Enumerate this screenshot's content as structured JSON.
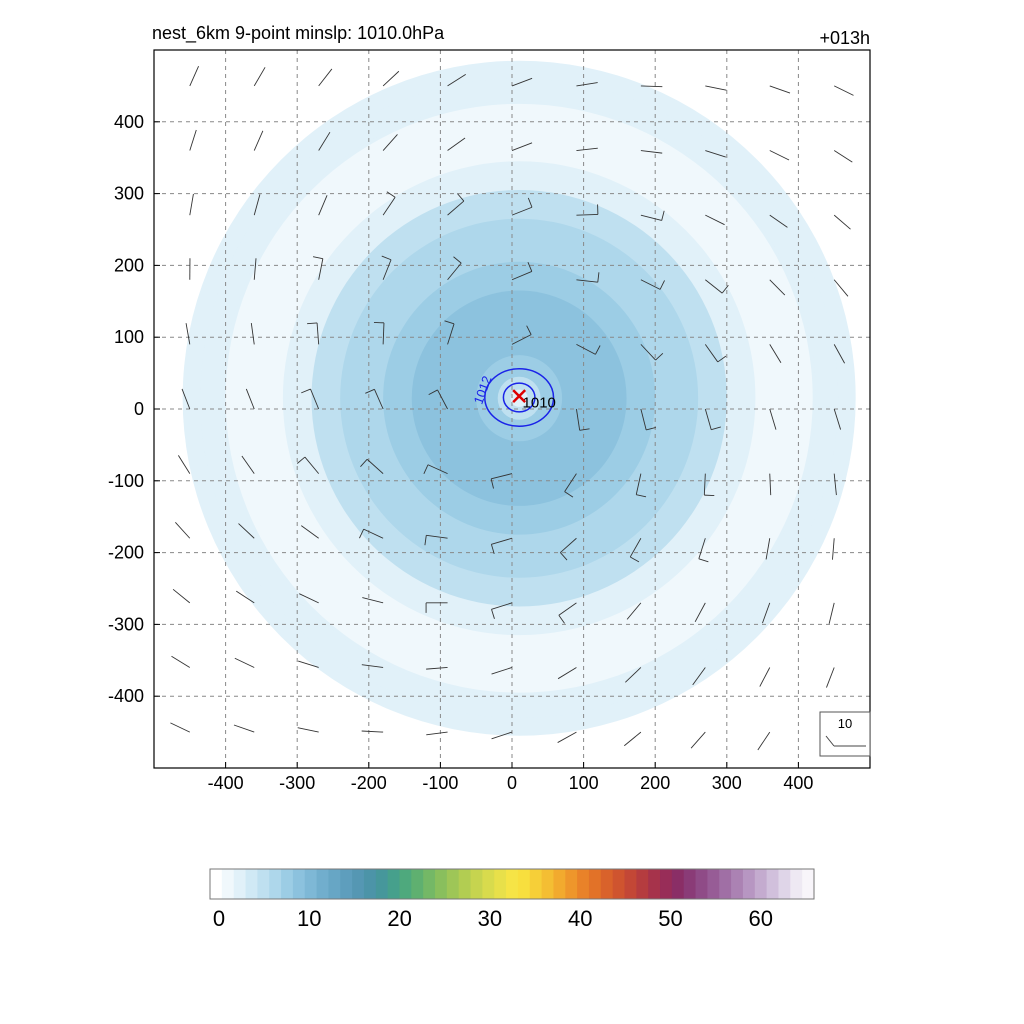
{
  "chart_data": {
    "type": "heatmap",
    "title": "nest_6km  9-point minslp: 1010.0hPa",
    "forecast_hour": "+013h",
    "xlim": [
      -500,
      500
    ],
    "ylim": [
      -500,
      500
    ],
    "x_ticks": [
      -400,
      -300,
      -200,
      -100,
      0,
      100,
      200,
      300,
      400
    ],
    "y_ticks": [
      400,
      300,
      200,
      100,
      0,
      -100,
      -200,
      -300,
      -400
    ],
    "grid": "dashed",
    "storm_center": {
      "x": 10,
      "y": 18,
      "marker": "x",
      "color": "#dd0000"
    },
    "min_pressure_label": {
      "text": "1010",
      "x": 38,
      "y": 2
    },
    "pressure_contours": [
      {
        "level": "1010",
        "radius_x": 22,
        "radius_y": 20
      },
      {
        "level": "1012",
        "radius_x": 48,
        "radius_y": 40
      }
    ],
    "wind_speed_field": {
      "center": {
        "x": 10,
        "y": 15
      },
      "outer_ring_radius": 430,
      "description_levels": [
        {
          "max_radius": 470,
          "value": 2
        },
        {
          "max_radius": 410,
          "value": 1
        },
        {
          "max_radius": 330,
          "value": 3
        },
        {
          "max_radius": 290,
          "value": 5
        },
        {
          "max_radius": 250,
          "value": 6
        },
        {
          "max_radius": 220,
          "value": 7
        },
        {
          "max_radius": 190,
          "value": 8
        },
        {
          "max_radius": 150,
          "value": 9
        },
        {
          "max_radius": 60,
          "value": 8
        },
        {
          "max_radius": 30,
          "value": 5
        },
        {
          "max_radius": 12,
          "value": 2
        }
      ]
    },
    "wind_barbs": {
      "spacing": 90,
      "reference_label": "10"
    },
    "colorbar": {
      "min": 0,
      "max": 66,
      "tick_values": [
        0,
        10,
        20,
        30,
        40,
        50,
        60
      ],
      "tick_labels": [
        "0",
        "10",
        "20",
        "30",
        "40",
        "50",
        "60"
      ],
      "colors": [
        "#ffffff",
        "#f0f8fc",
        "#e1f1f9",
        "#d0e9f5",
        "#bfe0f0",
        "#aed7eb",
        "#9ccde5",
        "#8cc2de",
        "#7eb8d6",
        "#71aecd",
        "#67a6c5",
        "#5e9ebd",
        "#5597b3",
        "#4c94a8",
        "#46979b",
        "#46a08c",
        "#4ea97d",
        "#5fb070",
        "#74b866",
        "#89bf5d",
        "#9ec657",
        "#b2cd52",
        "#c6d44f",
        "#d8db4d",
        "#e8e04a",
        "#f6e446",
        "#f8df3e",
        "#f6cf38",
        "#f4be33",
        "#f2aa2e",
        "#ee962b",
        "#e98229",
        "#e27228",
        "#d9622b",
        "#cf542f",
        "#c34736",
        "#b53c3f",
        "#a6334b",
        "#982d58",
        "#8a2e66",
        "#8a3b77",
        "#8f4b87",
        "#975c96",
        "#a06fa5",
        "#ab82b3",
        "#b796c2",
        "#c4abcf",
        "#d1c0dc",
        "#dfd5e8",
        "#eee9f3",
        "#f8f5fa"
      ]
    }
  }
}
